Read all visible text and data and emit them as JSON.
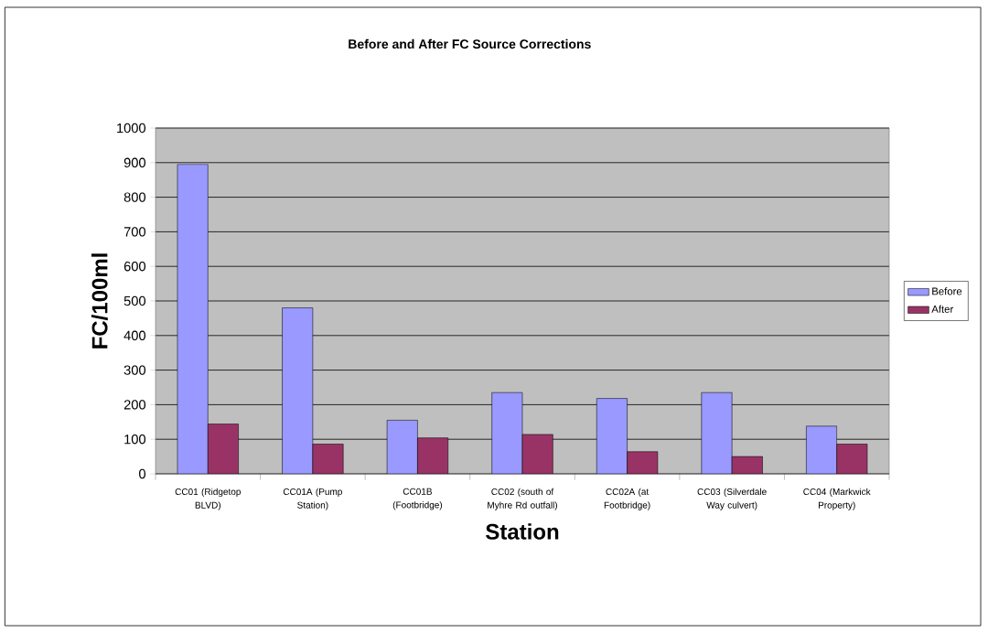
{
  "chart_data": {
    "type": "bar",
    "title": "Before and After FC Source Corrections",
    "xlabel": "Station",
    "ylabel": "FC/100ml",
    "categories": [
      "CC01 (Ridgetop BLVD)",
      "CC01A (Pump Station)",
      "CC01B (Footbridge)",
      "CC02 (south of Myhre Rd outfall)",
      "CC02A (at Footbridge)",
      "CC03 (Silverdale Way culvert)",
      "CC04 (Markwick Property)"
    ],
    "series": [
      {
        "name": "Before",
        "color": "#9999ff",
        "values": [
          895,
          480,
          155,
          235,
          218,
          235,
          138
        ]
      },
      {
        "name": "After",
        "color": "#993366",
        "values": [
          144,
          86,
          104,
          114,
          64,
          50,
          86
        ]
      }
    ],
    "ylim": [
      0,
      1000
    ],
    "yticks": [
      0,
      100,
      200,
      300,
      400,
      500,
      600,
      700,
      800,
      900,
      1000
    ],
    "grid": "y",
    "legend": "right"
  }
}
